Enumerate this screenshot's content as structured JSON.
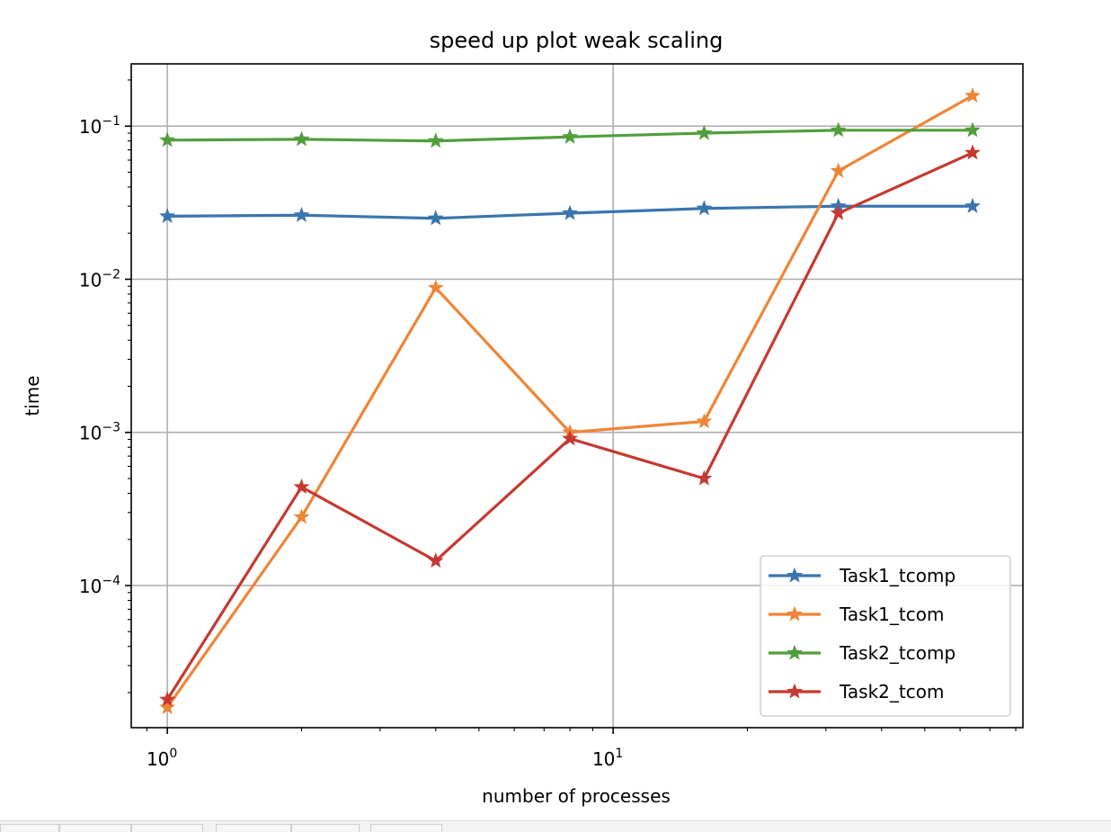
{
  "chart_data": {
    "type": "line",
    "title": "speed up plot weak scaling",
    "xlabel": "number of processes",
    "ylabel": "time",
    "xscale": "log",
    "yscale": "log",
    "xlim": [
      0.83,
      83
    ],
    "ylim": [
      1.18e-05,
      0.255
    ],
    "x_ticks": [
      {
        "value": 1,
        "base": "10",
        "exp": "0"
      },
      {
        "value": 10,
        "base": "10",
        "exp": "1"
      }
    ],
    "y_ticks": [
      {
        "value": 0.0001,
        "base": "10",
        "exp": "−4"
      },
      {
        "value": 0.001,
        "base": "10",
        "exp": "−3"
      },
      {
        "value": 0.01,
        "base": "10",
        "exp": "−2"
      },
      {
        "value": 0.1,
        "base": "10",
        "exp": "−1"
      }
    ],
    "grid": true,
    "marker": "star",
    "legend_position": "lower right",
    "x": [
      1,
      2,
      4,
      8,
      16,
      32,
      64
    ],
    "series": [
      {
        "name": "Task1_tcomp",
        "color": "#3a75af",
        "values": [
          0.0258,
          0.0262,
          0.025,
          0.027,
          0.029,
          0.03,
          0.03
        ]
      },
      {
        "name": "Task1_tcom",
        "color": "#ef8536",
        "values": [
          1.6e-05,
          0.00028,
          0.0088,
          0.001,
          0.00118,
          0.051,
          0.158
        ]
      },
      {
        "name": "Task2_tcomp",
        "color": "#519e3e",
        "values": [
          0.081,
          0.082,
          0.08,
          0.085,
          0.09,
          0.094,
          0.094
        ]
      },
      {
        "name": "Task2_tcom",
        "color": "#c43a32",
        "values": [
          1.8e-05,
          0.00044,
          0.000145,
          0.00091,
          0.0005,
          0.027,
          0.067
        ]
      }
    ]
  }
}
